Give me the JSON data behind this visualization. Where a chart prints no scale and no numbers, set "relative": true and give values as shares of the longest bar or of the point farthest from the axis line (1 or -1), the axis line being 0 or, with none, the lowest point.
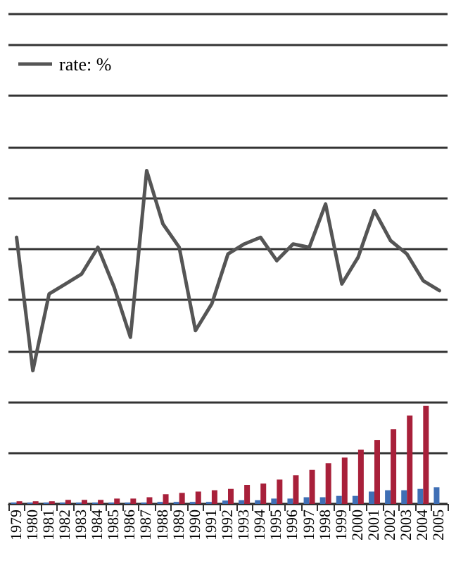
{
  "chart_data": {
    "type": "bar",
    "relative": true,
    "grid": "y",
    "legend": "top left",
    "marker": "none",
    "categories": [
      "1979",
      "1980",
      "1981",
      "1982",
      "1983",
      "1984",
      "1985",
      "1986",
      "1987",
      "1988",
      "1989",
      "1990",
      "1991",
      "1992",
      "1993",
      "1994",
      "1995",
      "1996",
      "1997",
      "1998",
      "1999",
      "2000",
      "2001",
      "2002",
      "2003",
      "2004",
      "2005"
    ],
    "series": [
      {
        "color": "#3f6fb5",
        "values": [
          0.004,
          0.004,
          0.004,
          0.004,
          0.004,
          0.004,
          0.004,
          0.004,
          0.004,
          0.006,
          0.006,
          0.006,
          0.006,
          0.01,
          0.011,
          0.011,
          0.016,
          0.016,
          0.02,
          0.02,
          0.024,
          0.024,
          0.037,
          0.041,
          0.041,
          0.045,
          0.05
        ]
      },
      {
        "color": "#a8203a",
        "values": [
          0.008,
          0.008,
          0.008,
          0.012,
          0.012,
          0.012,
          0.016,
          0.016,
          0.02,
          0.029,
          0.033,
          0.037,
          0.041,
          0.045,
          0.057,
          0.061,
          0.073,
          0.086,
          0.102,
          0.122,
          0.139,
          0.163,
          0.192,
          0.224,
          0.265,
          0.294,
          null
        ]
      },
      {
        "type": "line",
        "name": "rate: %",
        "color": "#555555",
        "values": [
          0.8,
          0.4,
          0.63,
          0.66,
          0.69,
          0.77,
          0.65,
          0.5,
          1,
          0.84,
          0.77,
          0.52,
          0.6,
          0.75,
          0.78,
          0.8,
          0.73,
          0.78,
          0.77,
          0.9,
          0.66,
          0.74,
          0.88,
          0.79,
          0.75,
          0.67,
          0.64
        ]
      }
    ]
  }
}
